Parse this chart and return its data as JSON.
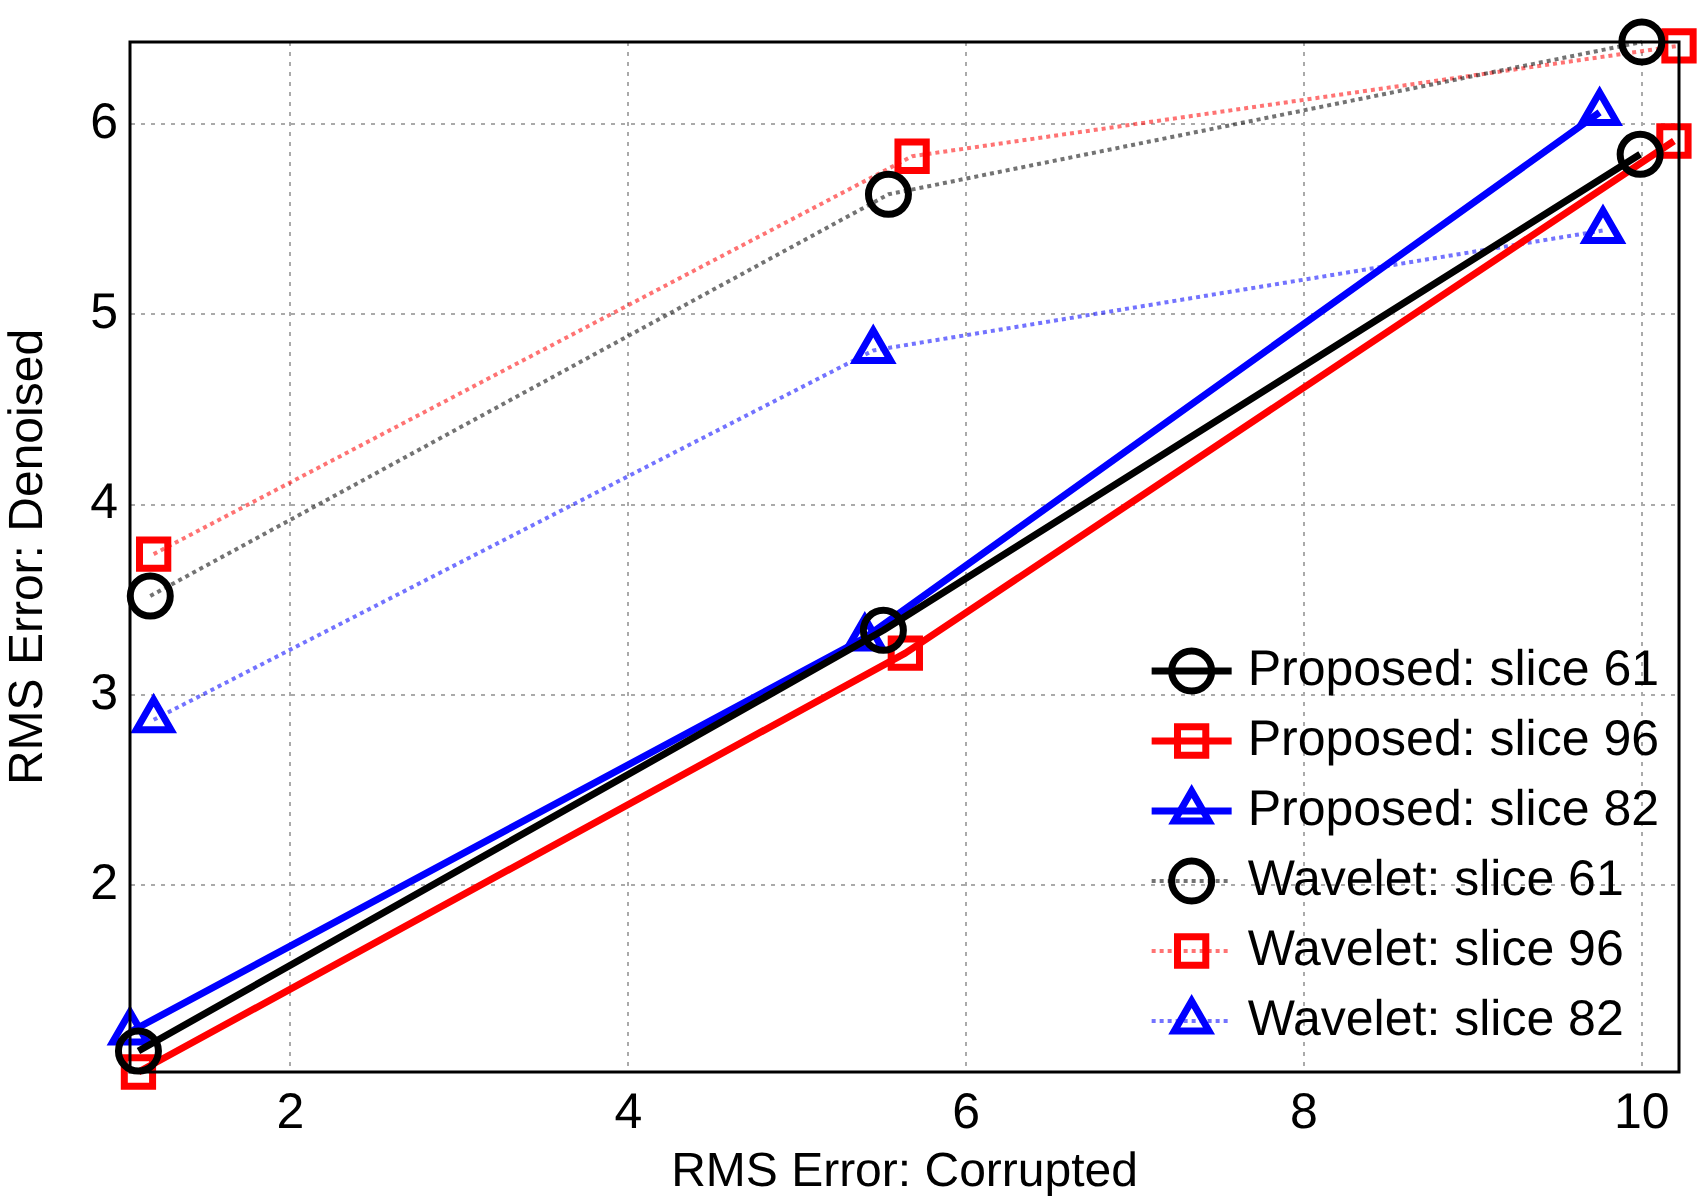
{
  "chart_data": {
    "type": "line",
    "xlabel": "RMS Error: Corrupted",
    "ylabel": "RMS Error: Denoised",
    "xlim": [
      1.05,
      10.22
    ],
    "xticks": [
      2,
      4,
      6,
      8,
      10
    ],
    "ylim": [
      1.02,
      6.43
    ],
    "yticks": [
      2,
      3,
      4,
      5,
      6
    ],
    "grid": true,
    "legend": "bottom right",
    "series": [
      {
        "name": "Proposed: slice 61",
        "color": "#000000",
        "marker": "circle",
        "line_style": "solid",
        "x": [
          1.1,
          5.51,
          9.99
        ],
        "values": [
          1.13,
          3.34,
          5.84
        ]
      },
      {
        "name": "Proposed: slice 96",
        "color": "#ff0000",
        "marker": "square",
        "line_style": "solid",
        "x": [
          1.1,
          5.64,
          10.19
        ],
        "values": [
          1.02,
          3.22,
          5.91
        ]
      },
      {
        "name": "Proposed: slice 82",
        "color": "#0000ff",
        "marker": "triangle",
        "line_style": "solid",
        "x": [
          1.05,
          5.4,
          9.75
        ],
        "values": [
          1.23,
          3.3,
          6.06
        ]
      },
      {
        "name": "Wavelet: slice 61",
        "color": "#000000",
        "marker": "circle",
        "line_style": "dotted",
        "x": [
          1.17,
          5.54,
          10.0
        ],
        "values": [
          3.52,
          5.63,
          6.43
        ]
      },
      {
        "name": "Wavelet: slice 96",
        "color": "#ff0000",
        "marker": "square",
        "line_style": "dotted",
        "x": [
          1.19,
          5.68,
          10.22
        ],
        "values": [
          3.74,
          5.83,
          6.41
        ]
      },
      {
        "name": "Wavelet: slice 82",
        "color": "#0000ff",
        "marker": "triangle",
        "line_style": "dotted",
        "x": [
          1.19,
          5.45,
          9.77
        ],
        "values": [
          2.87,
          4.81,
          5.44
        ]
      }
    ]
  }
}
